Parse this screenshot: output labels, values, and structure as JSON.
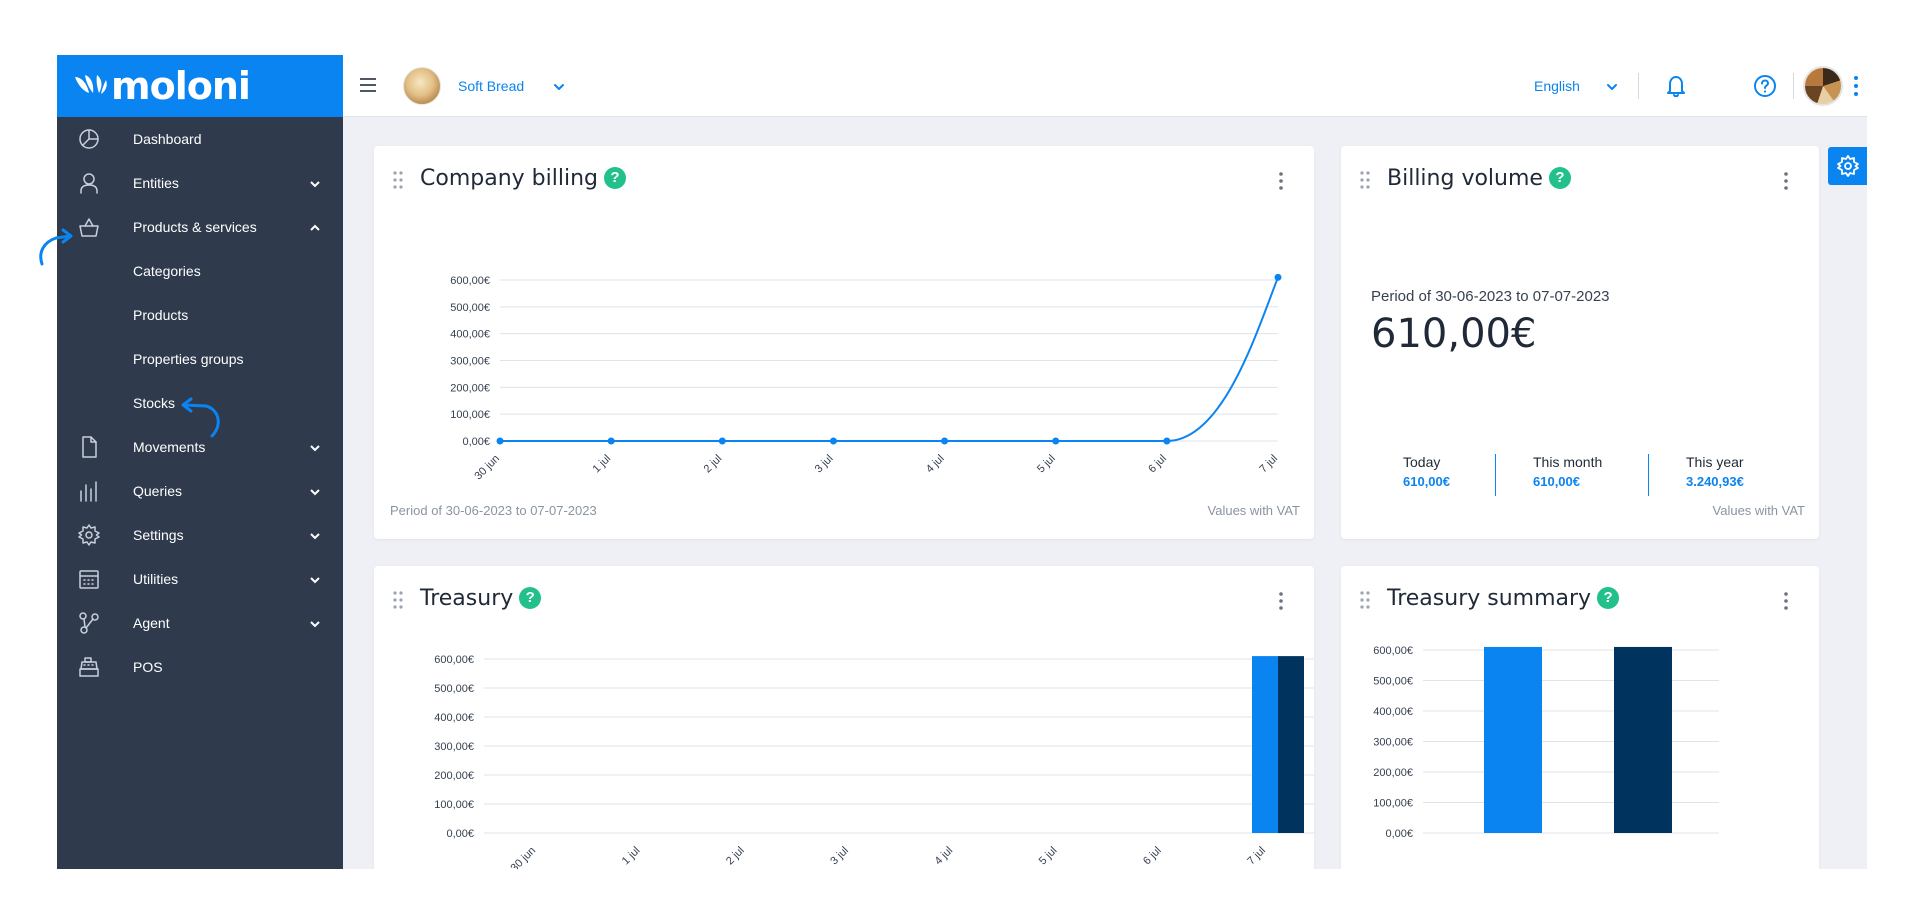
{
  "brand": {
    "name": "moloni",
    "color": "#0a84f0",
    "sidebar_bg": "#2f3a4c"
  },
  "sidebar": {
    "items": [
      {
        "label": "Dashboard",
        "icon": "pie-chart-icon",
        "expandable": false
      },
      {
        "label": "Entities",
        "icon": "user-icon",
        "expandable": true
      },
      {
        "label": "Products & services",
        "icon": "basket-icon",
        "expandable": true,
        "expanded": true,
        "children": [
          "Categories",
          "Products",
          "Properties groups",
          "Stocks"
        ]
      },
      {
        "label": "Movements",
        "icon": "document-icon",
        "expandable": true
      },
      {
        "label": "Queries",
        "icon": "bars-icon",
        "expandable": true
      },
      {
        "label": "Settings",
        "icon": "gear-icon",
        "expandable": true
      },
      {
        "label": "Utilities",
        "icon": "calendar-grid-icon",
        "expandable": true
      },
      {
        "label": "Agent",
        "icon": "network-icon",
        "expandable": true
      },
      {
        "label": "POS",
        "icon": "cash-register-icon",
        "expandable": false
      }
    ]
  },
  "topbar": {
    "company_name": "Soft Bread",
    "language": "English",
    "icons": [
      "menu-icon",
      "bell-icon",
      "help-icon",
      "more-vertical-icon"
    ]
  },
  "cards": {
    "billing": {
      "title": "Company billing",
      "footer_left": "Period of 30-06-2023 to 07-07-2023",
      "footer_right": "Values with VAT"
    },
    "volume": {
      "title": "Billing volume",
      "period": "Period of 30-06-2023 to 07-07-2023",
      "amount": "610,00€",
      "stats": [
        {
          "label": "Today",
          "value": "610,00€"
        },
        {
          "label": "This month",
          "value": "610,00€"
        },
        {
          "label": "This year",
          "value": "3.240,93€"
        }
      ],
      "footer_right": "Values with VAT"
    },
    "treasury": {
      "title": "Treasury"
    },
    "summary": {
      "title": "Treasury summary"
    }
  },
  "chart_data": [
    {
      "id": "billing",
      "type": "line",
      "x": [
        "30 jun",
        "1 jul",
        "2 jul",
        "3 jul",
        "4 jul",
        "5 jul",
        "6 jul",
        "7 jul"
      ],
      "series": [
        {
          "values": [
            0,
            0,
            0,
            0,
            0,
            0,
            0,
            610
          ],
          "color": "#0a84f0"
        }
      ],
      "y_ticks": [
        "0,00€",
        "100,00€",
        "200,00€",
        "300,00€",
        "400,00€",
        "500,00€",
        "600,00€"
      ],
      "ylim": [
        0,
        600
      ],
      "grid": true
    },
    {
      "id": "treasury",
      "type": "bar",
      "categories": [
        "30 jun",
        "1 jul",
        "2 jul",
        "3 jul",
        "4 jul",
        "5 jul",
        "6 jul",
        "7 jul"
      ],
      "series": [
        {
          "values": [
            0,
            0,
            0,
            0,
            0,
            0,
            0,
            610
          ],
          "color": "#0a84f0"
        },
        {
          "values": [
            0,
            0,
            0,
            0,
            0,
            0,
            0,
            610
          ],
          "color": "#00335e"
        }
      ],
      "y_ticks": [
        "0,00€",
        "100,00€",
        "200,00€",
        "300,00€",
        "400,00€",
        "500,00€",
        "600,00€"
      ],
      "ylim": [
        0,
        600
      ],
      "grid": true
    },
    {
      "id": "summary",
      "type": "bar",
      "categories": [
        "",
        ""
      ],
      "values": [
        610,
        610
      ],
      "colors": [
        "#0a84f0",
        "#00335e"
      ],
      "y_ticks": [
        "0,00€",
        "100,00€",
        "200,00€",
        "300,00€",
        "400,00€",
        "500,00€",
        "600,00€"
      ],
      "ylim": [
        0,
        600
      ],
      "grid": true
    }
  ]
}
